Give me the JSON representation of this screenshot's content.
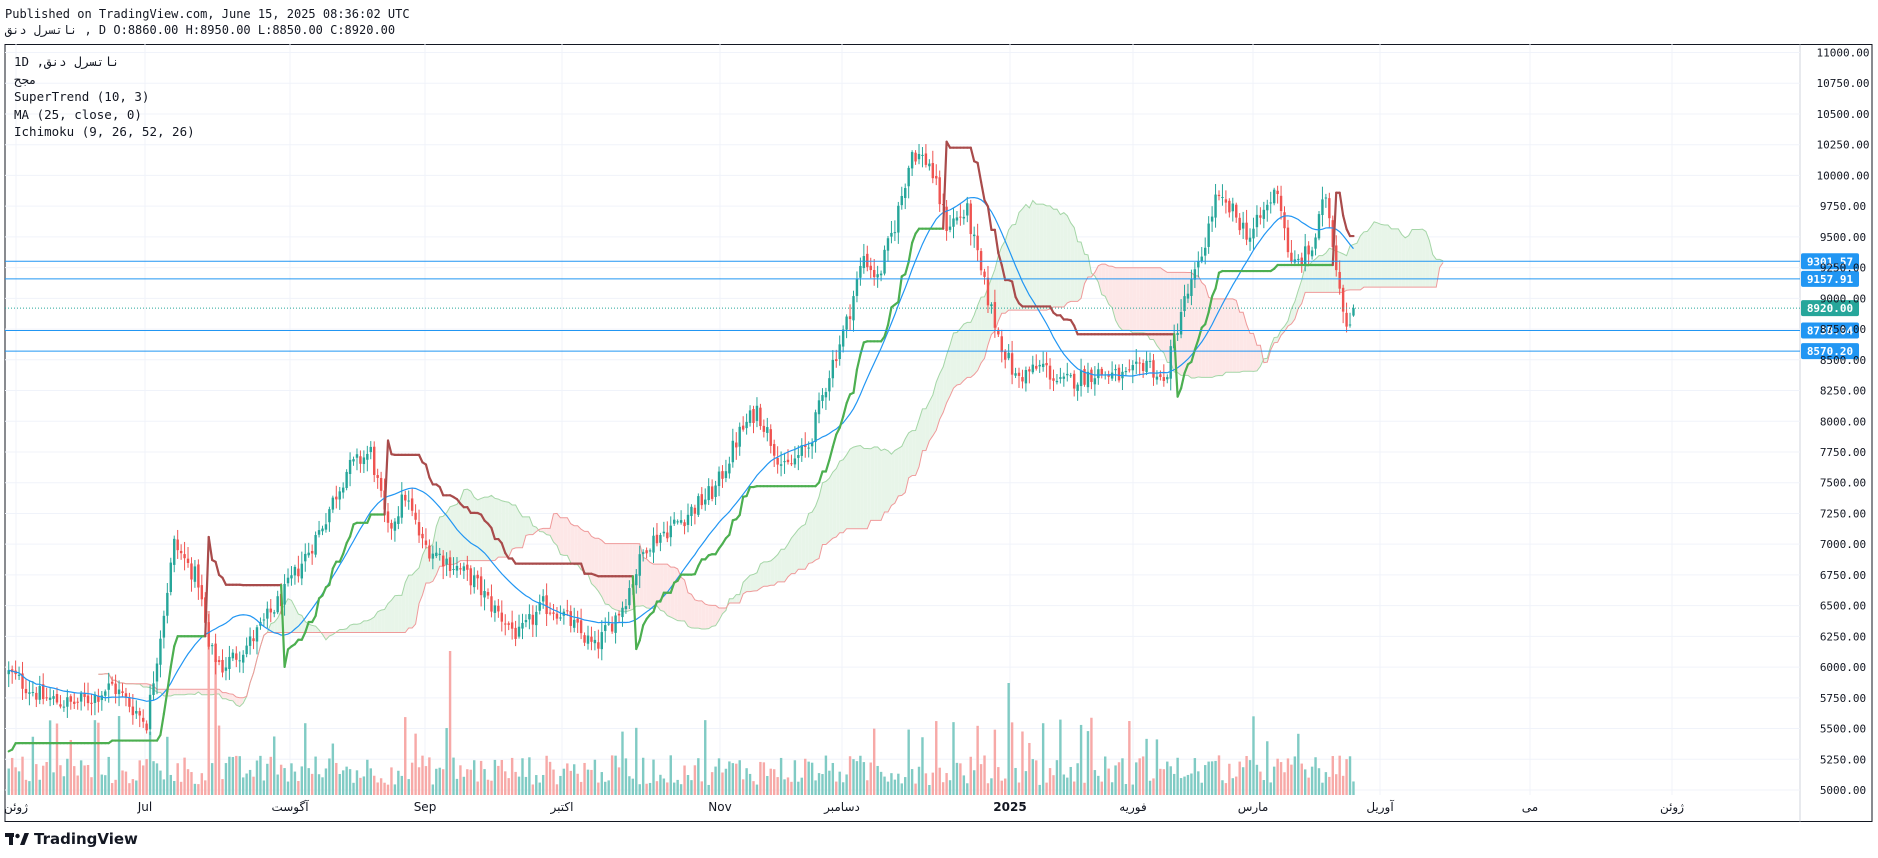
{
  "header": {
    "published": "Published on TradingView.com, June 15, 2025 08:36:02 UTC",
    "ohlc": "ناتسرل دنق , D O:8860.00 H:8950.00 L:8850.00 C:8920.00"
  },
  "legend": {
    "symbol_line": "1D ,ناتسرل دنق",
    "exchange": "مجح",
    "supertrend": "SuperTrend (10, 3)",
    "ma": "MA (25, close, 0)",
    "ichimoku": "Ichimoku (9, 26, 52, 26)"
  },
  "brand": {
    "name": "TradingView",
    "icon": "tradingview-logo-icon"
  },
  "colors": {
    "up": "#26a69a",
    "down": "#ef5350",
    "supertrend_up": "#4caf50",
    "supertrend_down": "#a94b4b",
    "ma": "#2196f3",
    "hline": "#2196f3",
    "cloud_bull": "#e8f5e9",
    "cloud_bear": "#fde7e7",
    "last_price": "#26a69a"
  },
  "chart_data": {
    "type": "candlestick",
    "timeframe": "1D",
    "y_axis": {
      "ticks": [
        "11000.00",
        "10750.00",
        "10500.00",
        "10250.00",
        "10000.00",
        "9750.00",
        "9500.00",
        "9250.00",
        "9000.00",
        "8750.00",
        "8500.00",
        "8250.00",
        "8000.00",
        "7750.00",
        "7500.00",
        "7250.00",
        "7000.00",
        "6750.00",
        "6500.00",
        "6250.00",
        "6000.00",
        "5750.00",
        "5500.00",
        "5250.00",
        "5000.00"
      ],
      "range": [
        5000,
        11000
      ]
    },
    "x_axis": {
      "ticks": [
        "ژوئن",
        "Jul",
        "آگوست",
        "Sep",
        "اکتبر",
        "Nov",
        "دسامبر",
        "2025",
        "فوریه",
        "مارس",
        "آوریل",
        "می",
        "ژوئن"
      ]
    },
    "horizontal_levels": [
      {
        "value": 9301.57,
        "label": "9301.57"
      },
      {
        "value": 9157.91,
        "label": "9157.91"
      },
      {
        "value": 8738.04,
        "label": "8738.04"
      },
      {
        "value": 8570.2,
        "label": "8570.20"
      }
    ],
    "last_price": {
      "value": 8920.0,
      "label": "8920.00"
    },
    "price_anchors": [
      [
        0,
        5950
      ],
      [
        10,
        5750
      ],
      [
        18,
        5700
      ],
      [
        24,
        5750
      ],
      [
        30,
        5850
      ],
      [
        35,
        5700
      ],
      [
        40,
        5550
      ],
      [
        48,
        7000
      ],
      [
        55,
        6700
      ],
      [
        58,
        6150
      ],
      [
        62,
        6000
      ],
      [
        70,
        6200
      ],
      [
        80,
        6600
      ],
      [
        90,
        7100
      ],
      [
        98,
        7600
      ],
      [
        105,
        7750
      ],
      [
        110,
        7100
      ],
      [
        115,
        7400
      ],
      [
        120,
        7000
      ],
      [
        128,
        6850
      ],
      [
        135,
        6700
      ],
      [
        140,
        6500
      ],
      [
        148,
        6250
      ],
      [
        155,
        6500
      ],
      [
        160,
        6450
      ],
      [
        165,
        6300
      ],
      [
        170,
        6150
      ],
      [
        178,
        6500
      ],
      [
        185,
        7000
      ],
      [
        195,
        7200
      ],
      [
        205,
        7450
      ],
      [
        212,
        7900
      ],
      [
        217,
        8100
      ],
      [
        225,
        7600
      ],
      [
        232,
        7800
      ],
      [
        238,
        8400
      ],
      [
        243,
        8800
      ],
      [
        248,
        9350
      ],
      [
        252,
        9150
      ],
      [
        257,
        9600
      ],
      [
        262,
        10200
      ],
      [
        267,
        10100
      ],
      [
        272,
        9600
      ],
      [
        278,
        9700
      ],
      [
        282,
        9200
      ],
      [
        287,
        8700
      ],
      [
        292,
        8350
      ],
      [
        300,
        8450
      ],
      [
        305,
        8300
      ],
      [
        315,
        8400
      ],
      [
        325,
        8350
      ],
      [
        330,
        8500
      ],
      [
        335,
        8300
      ],
      [
        340,
        8900
      ],
      [
        345,
        9250
      ],
      [
        350,
        9800
      ],
      [
        355,
        9700
      ],
      [
        360,
        9500
      ],
      [
        368,
        9900
      ],
      [
        372,
        9250
      ],
      [
        378,
        9400
      ],
      [
        382,
        9850
      ],
      [
        386,
        9100
      ],
      [
        388,
        8800
      ],
      [
        390,
        8920
      ]
    ],
    "volume_axis_range": [
      0,
      10000
    ],
    "supertrend": {
      "period": 10,
      "multiplier": 3
    },
    "ma": {
      "length": 25,
      "source": "close",
      "offset": 0
    },
    "ichimoku": {
      "conversion": 9,
      "base": 26,
      "span_b": 52,
      "displacement": 26
    }
  }
}
